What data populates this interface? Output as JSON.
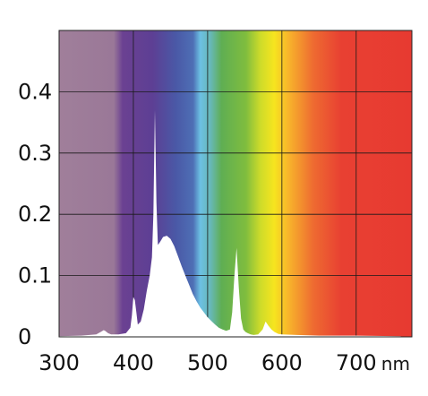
{
  "chart_data": {
    "type": "area",
    "title": "",
    "xlabel": "",
    "ylabel": "",
    "x_unit": "nm",
    "xlim": [
      300,
      775
    ],
    "ylim": [
      0,
      0.5
    ],
    "grid": true,
    "background": "visible spectrum color bands",
    "fill_color": "#ffffff",
    "x_ticks": [
      {
        "value": 300,
        "label": "300"
      },
      {
        "value": 400,
        "label": "400"
      },
      {
        "value": 500,
        "label": "500"
      },
      {
        "value": 600,
        "label": "600"
      },
      {
        "value": 700,
        "label": "700"
      }
    ],
    "y_ticks": [
      {
        "value": 0,
        "label": "0"
      },
      {
        "value": 0.1,
        "label": "0.1"
      },
      {
        "value": 0.2,
        "label": "0.2"
      },
      {
        "value": 0.3,
        "label": "0.3"
      },
      {
        "value": 0.4,
        "label": "0.4"
      }
    ],
    "series": [
      {
        "x": [
          300,
          330,
          350,
          356,
          360,
          362,
          366,
          370,
          380,
          390,
          396,
          398,
          400,
          402,
          404,
          406,
          410,
          414,
          418,
          422,
          425,
          427,
          429,
          431,
          433,
          436,
          440,
          445,
          450,
          455,
          460,
          465,
          470,
          475,
          480,
          485,
          490,
          495,
          500,
          505,
          510,
          515,
          520,
          525,
          530,
          533,
          536,
          539,
          542,
          545,
          548,
          551,
          554,
          558,
          562,
          568,
          574,
          578,
          582,
          586,
          590,
          595,
          600,
          620,
          650,
          700,
          760
        ],
        "y": [
          0.001,
          0.002,
          0.004,
          0.008,
          0.011,
          0.01,
          0.006,
          0.004,
          0.004,
          0.006,
          0.015,
          0.035,
          0.065,
          0.06,
          0.04,
          0.02,
          0.025,
          0.045,
          0.075,
          0.1,
          0.13,
          0.2,
          0.37,
          0.22,
          0.15,
          0.155,
          0.163,
          0.165,
          0.16,
          0.148,
          0.132,
          0.115,
          0.1,
          0.085,
          0.07,
          0.058,
          0.048,
          0.04,
          0.032,
          0.026,
          0.02,
          0.015,
          0.012,
          0.01,
          0.012,
          0.04,
          0.1,
          0.145,
          0.08,
          0.03,
          0.012,
          0.008,
          0.006,
          0.004,
          0.003,
          0.004,
          0.012,
          0.025,
          0.018,
          0.012,
          0.008,
          0.005,
          0.004,
          0.003,
          0.002,
          0.002,
          0.001
        ]
      }
    ]
  }
}
